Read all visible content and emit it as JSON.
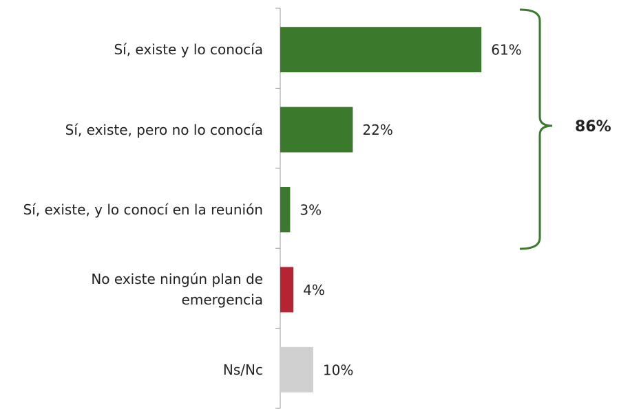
{
  "chart_data": {
    "type": "bar",
    "orientation": "horizontal",
    "categories": [
      "Sí, existe y lo conocía",
      "Sí, existe, pero no lo conocía",
      "Sí, existe, y lo conocí en la reunión",
      "No existe ningún plan de emergencia",
      "Ns/Nc"
    ],
    "values": [
      61,
      22,
      3,
      4,
      10
    ],
    "value_labels": [
      "61%",
      "22%",
      "3%",
      "4%",
      "10%"
    ],
    "colors": [
      "#3b7a2c",
      "#3b7a2c",
      "#3b7a2c",
      "#b42432",
      "#d0d0d0"
    ],
    "xlim": [
      0,
      100
    ],
    "annotation": "86%"
  }
}
